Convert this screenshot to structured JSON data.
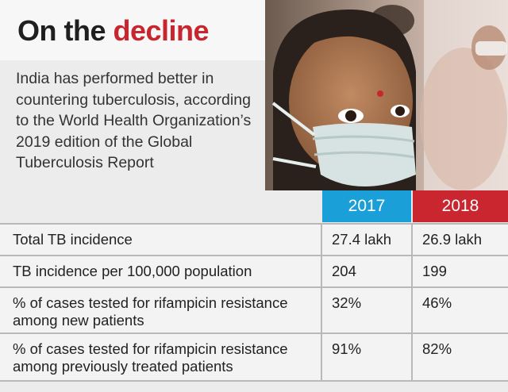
{
  "title_part1": "On the",
  "title_part2": "decline",
  "description": "India has performed better in countering tuberculosis, according to the World Health Organization’s 2019 edition of the Global Tuberculosis Report",
  "colors": {
    "year_2017": "#1a9fd9",
    "year_2018": "#c9262f",
    "accent_title": "#c8262e"
  },
  "photo": "masked-woman-photo",
  "chart_data": {
    "type": "table",
    "columns": [
      "2017",
      "2018"
    ],
    "rows": [
      {
        "label": "Total TB incidence",
        "values": [
          "27.4 lakh",
          "26.9 lakh"
        ]
      },
      {
        "label": "TB incidence per 100,000 population",
        "values": [
          "204",
          "199"
        ]
      },
      {
        "label": "% of cases tested for rifampicin resistance among new patients",
        "values": [
          "32%",
          "46%"
        ]
      },
      {
        "label": "% of cases tested for rifampicin resistance among previously treated patients",
        "values": [
          "91%",
          "82%"
        ]
      }
    ]
  }
}
